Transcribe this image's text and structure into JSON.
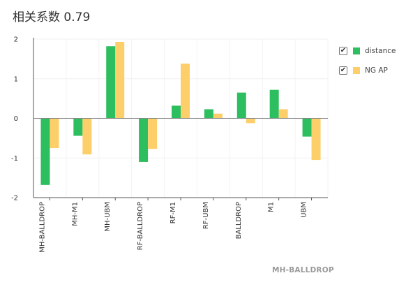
{
  "chart_data": {
    "type": "bar",
    "title": "相关系数 0.79",
    "categories": [
      "MH-BALLDROP",
      "MH-M1",
      "MH-UBM",
      "RF-BALLDROP",
      "RF-M1",
      "RF-UBM",
      "BALLDROP",
      "M1",
      "UBM"
    ],
    "series": [
      {
        "name": "distance",
        "color": "#2dbe60",
        "values": [
          -1.68,
          -0.44,
          1.82,
          -1.1,
          0.32,
          0.23,
          0.65,
          0.72,
          -0.46
        ]
      },
      {
        "name": "NG AP",
        "color": "#fdcf6b",
        "values": [
          -0.75,
          -0.91,
          1.93,
          -0.77,
          1.38,
          0.12,
          -0.12,
          0.23,
          -1.05
        ]
      }
    ],
    "yticks": [
      2,
      1,
      0,
      -1,
      -2
    ],
    "ylim": [
      -2,
      2
    ],
    "grid": true,
    "legend_position": "right",
    "footer": "MH-BALLDROP"
  },
  "legend": {
    "check_glyph": "✔"
  }
}
